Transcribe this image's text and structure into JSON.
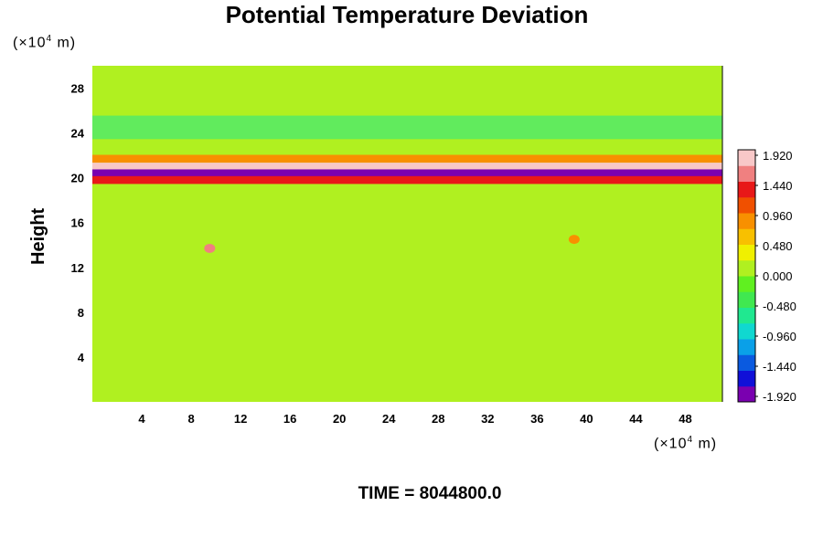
{
  "chart_data": {
    "type": "heatmap",
    "title": "Potential Temperature Deviation",
    "ylabel": "Height",
    "y_unit_prefix": "(×10",
    "y_unit_exp": "4",
    "y_unit_suffix": " m)",
    "x_unit_prefix": "(×10",
    "x_unit_exp": "4",
    "x_unit_suffix": " m)",
    "xlim": [
      0,
      51
    ],
    "ylim": [
      0,
      30
    ],
    "x_ticks": [
      4,
      8,
      12,
      16,
      20,
      24,
      28,
      32,
      36,
      40,
      44,
      48
    ],
    "y_ticks": [
      4,
      8,
      12,
      16,
      20,
      24,
      28
    ],
    "colorbar_ticks": [
      "1.920",
      "1.440",
      "0.960",
      "0.480",
      "0.000",
      "-0.480",
      "-0.960",
      "-1.440",
      "-1.920"
    ],
    "colorbar_range": [
      -1.92,
      1.92
    ],
    "colorbar_colors": [
      "#7a00b0",
      "#1010d8",
      "#0a5ae0",
      "#0aa0e8",
      "#10d8d0",
      "#20e890",
      "#40e850",
      "#60f020",
      "#b0f020",
      "#f0f000",
      "#f8c000",
      "#f89000",
      "#f05000",
      "#e81818",
      "#f08080",
      "#f8c8c8"
    ],
    "background_value": 0.05,
    "features": [
      {
        "x": [
          0,
          51
        ],
        "y": 21.7,
        "value": 0.9,
        "label": "upper warm band"
      },
      {
        "x": [
          0,
          51
        ],
        "y": 21.0,
        "value": 1.95,
        "label": "strong positive layer"
      },
      {
        "x": [
          0,
          51
        ],
        "y": 20.4,
        "value": -1.9,
        "label": "strong negative layer"
      },
      {
        "x": [
          0,
          51
        ],
        "y": 19.8,
        "value": 1.2,
        "label": "lower warm band"
      },
      {
        "x": [
          0,
          51
        ],
        "y": 24.5,
        "value": -0.5,
        "label": "upper cool zone"
      },
      {
        "x": [
          9.5,
          9.5
        ],
        "y": 13.7,
        "value": 1.6,
        "label": "warm spot"
      },
      {
        "x": [
          39,
          39
        ],
        "y": 14.5,
        "value": 0.8,
        "label": "warm patch"
      }
    ],
    "time_label": "TIME = 8044800.0"
  }
}
